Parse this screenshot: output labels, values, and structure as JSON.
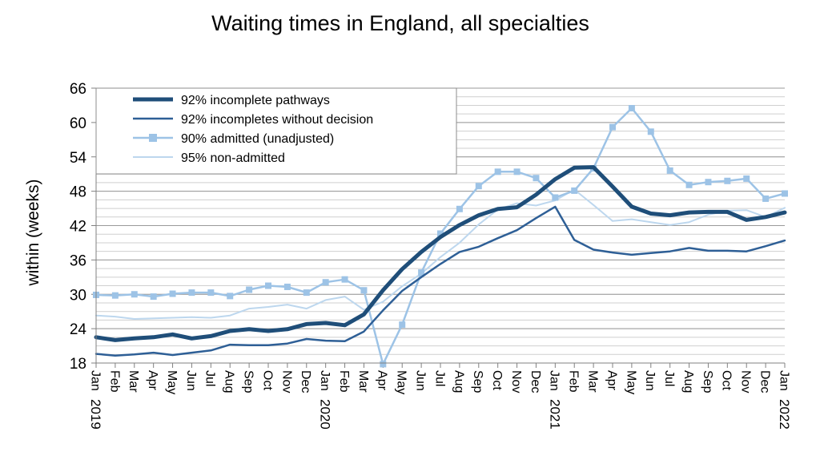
{
  "chart_data": {
    "type": "line",
    "title": "Waiting times in England, all specialties",
    "xlabel": "",
    "ylabel": "within  (weeks)",
    "ylim": [
      18,
      66
    ],
    "yticks": [
      18,
      24,
      30,
      36,
      42,
      48,
      54,
      60,
      66
    ],
    "grid": true,
    "legend_position": "top-left",
    "months": [
      "Jan",
      "Feb",
      "Mar",
      "Apr",
      "May",
      "Jun",
      "Jul",
      "Aug",
      "Sep",
      "Oct",
      "Nov",
      "Dec",
      "Jan",
      "Feb",
      "Mar",
      "Apr",
      "May",
      "Jun",
      "Jul",
      "Aug",
      "Sep",
      "Oct",
      "Nov",
      "Dec",
      "Jan",
      "Feb",
      "Mar",
      "Apr",
      "May",
      "Jun",
      "Jul",
      "Aug",
      "Sep",
      "Oct",
      "Nov",
      "Dec",
      "Jan"
    ],
    "year_labels": [
      {
        "index": 0,
        "label": "2019"
      },
      {
        "index": 12,
        "label": "2020"
      },
      {
        "index": 24,
        "label": "2021"
      },
      {
        "index": 36,
        "label": "2022"
      }
    ],
    "series": [
      {
        "name": "92% incomplete pathways",
        "color": "#1f4e79",
        "values": [
          22.5,
          22.0,
          22.3,
          22.5,
          23.0,
          22.3,
          22.7,
          23.6,
          23.9,
          23.6,
          23.9,
          24.8,
          25.0,
          24.6,
          26.5,
          30.7,
          34.4,
          37.4,
          40.0,
          42.1,
          43.8,
          44.9,
          45.2,
          47.4,
          50.1,
          52.1,
          52.2,
          48.8,
          45.3,
          44.1,
          43.8,
          44.3,
          44.4,
          44.4,
          43.0,
          43.5,
          44.3
        ]
      },
      {
        "name": "92% incompletes without decision",
        "color": "#2e5f96",
        "values": [
          19.6,
          19.3,
          19.5,
          19.8,
          19.4,
          19.8,
          20.2,
          21.2,
          21.1,
          21.1,
          21.4,
          22.2,
          21.9,
          21.8,
          23.5,
          27.2,
          30.6,
          33.0,
          35.3,
          37.4,
          38.3,
          39.8,
          41.2,
          43.3,
          45.3,
          39.5,
          37.8,
          37.3,
          36.9,
          37.2,
          37.5,
          38.1,
          37.6,
          37.6,
          37.5,
          38.4,
          39.4
        ]
      },
      {
        "name": "90% admitted (unadjusted)",
        "color": "#9dc3e6",
        "values": [
          29.9,
          29.8,
          30.0,
          29.6,
          30.1,
          30.3,
          30.3,
          29.7,
          30.8,
          31.5,
          31.3,
          30.3,
          32.1,
          32.6,
          30.7,
          17.8,
          24.7,
          33.8,
          40.6,
          44.9,
          48.9,
          51.4,
          51.4,
          50.3,
          46.9,
          48.1,
          52.0,
          59.2,
          62.5,
          58.4,
          51.6,
          49.1,
          49.6,
          49.8,
          50.2,
          46.7,
          47.6
        ]
      },
      {
        "name": "95% non-admitted",
        "color": "#bdd7ee",
        "values": [
          26.3,
          26.1,
          25.7,
          25.8,
          25.9,
          26.0,
          25.9,
          26.3,
          27.5,
          27.8,
          28.2,
          27.5,
          29.0,
          29.6,
          27.3,
          28.7,
          31.4,
          33.6,
          36.5,
          39.0,
          42.2,
          44.8,
          45.9,
          45.5,
          46.4,
          48.3,
          45.6,
          42.8,
          43.1,
          42.6,
          42.1,
          42.6,
          43.9,
          44.6,
          44.7,
          43.5,
          45.1
        ]
      }
    ]
  }
}
